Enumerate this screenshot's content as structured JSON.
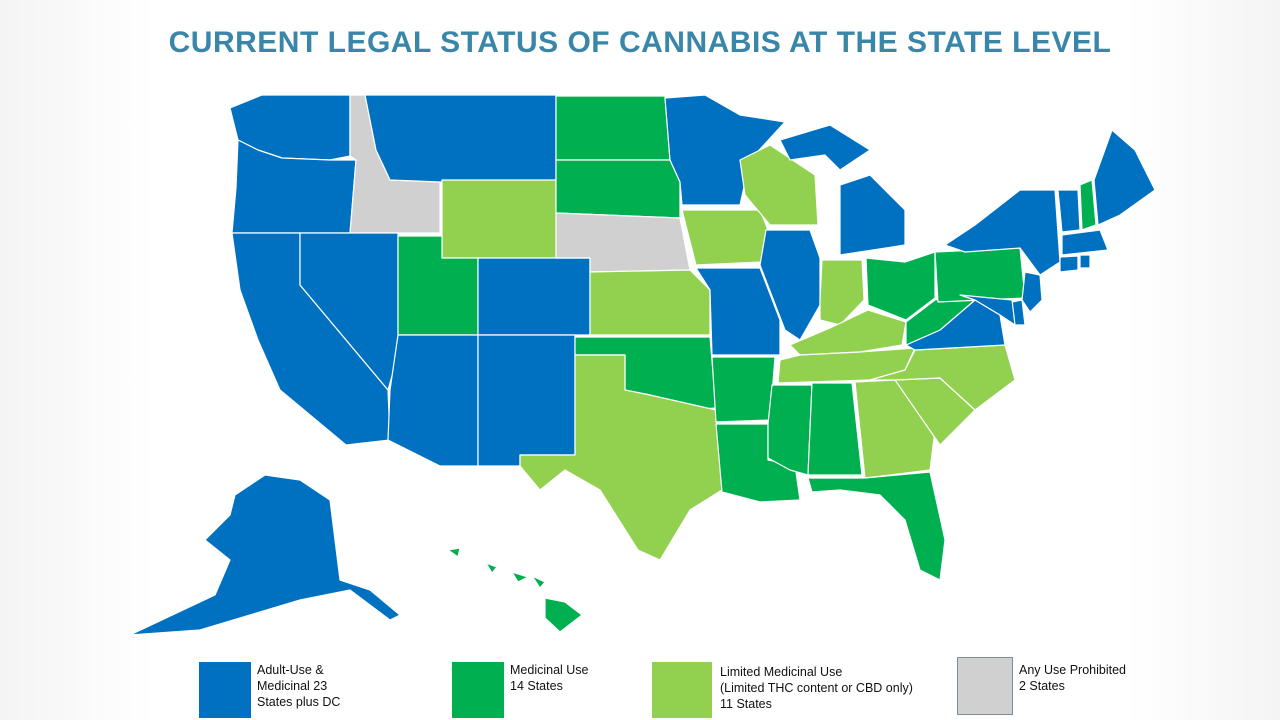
{
  "title": "CURRENT LEGAL STATUS OF CANNABIS AT THE STATE LEVEL",
  "colors": {
    "adult_use": "#0070c0",
    "medicinal": "#00b050",
    "limited_medicinal": "#92d050",
    "prohibited": "#d0d0d0"
  },
  "states": {
    "WA": "adult_use",
    "OR": "adult_use",
    "CA": "adult_use",
    "NV": "adult_use",
    "ID": "prohibited",
    "MT": "adult_use",
    "WY": "limited_medicinal",
    "UT": "medicinal",
    "AZ": "adult_use",
    "CO": "adult_use",
    "NM": "adult_use",
    "ND": "medicinal",
    "SD": "medicinal",
    "NE": "prohibited",
    "KS": "limited_medicinal",
    "OK": "medicinal",
    "TX": "limited_medicinal",
    "MN": "adult_use",
    "IA": "limited_medicinal",
    "MO": "adult_use",
    "AR": "medicinal",
    "LA": "medicinal",
    "WI": "limited_medicinal",
    "IL": "adult_use",
    "MI": "adult_use",
    "IN": "limited_medicinal",
    "OH": "medicinal",
    "KY": "limited_medicinal",
    "TN": "limited_medicinal",
    "MS": "medicinal",
    "AL": "medicinal",
    "GA": "limited_medicinal",
    "FL": "medicinal",
    "SC": "limited_medicinal",
    "NC": "limited_medicinal",
    "VA": "adult_use",
    "WV": "medicinal",
    "PA": "medicinal",
    "NY": "adult_use",
    "VT": "adult_use",
    "NH": "medicinal",
    "ME": "adult_use",
    "MA": "adult_use",
    "CT": "adult_use",
    "RI": "adult_use",
    "NJ": "adult_use",
    "DE": "adult_use",
    "MD": "adult_use",
    "AK": "adult_use",
    "HI": "medicinal"
  },
  "legend": [
    {
      "key": "adult_use",
      "text": "Adult-Use &\nMedicinal  23\nStates plus DC"
    },
    {
      "key": "medicinal",
      "text": "Medicinal Use\n14 States"
    },
    {
      "key": "limited_medicinal",
      "text": "Limited Medicinal Use\n(Limited THC content or CBD only)\n11 States"
    },
    {
      "key": "prohibited",
      "text": "Any Use Prohibited\n2 States"
    }
  ]
}
